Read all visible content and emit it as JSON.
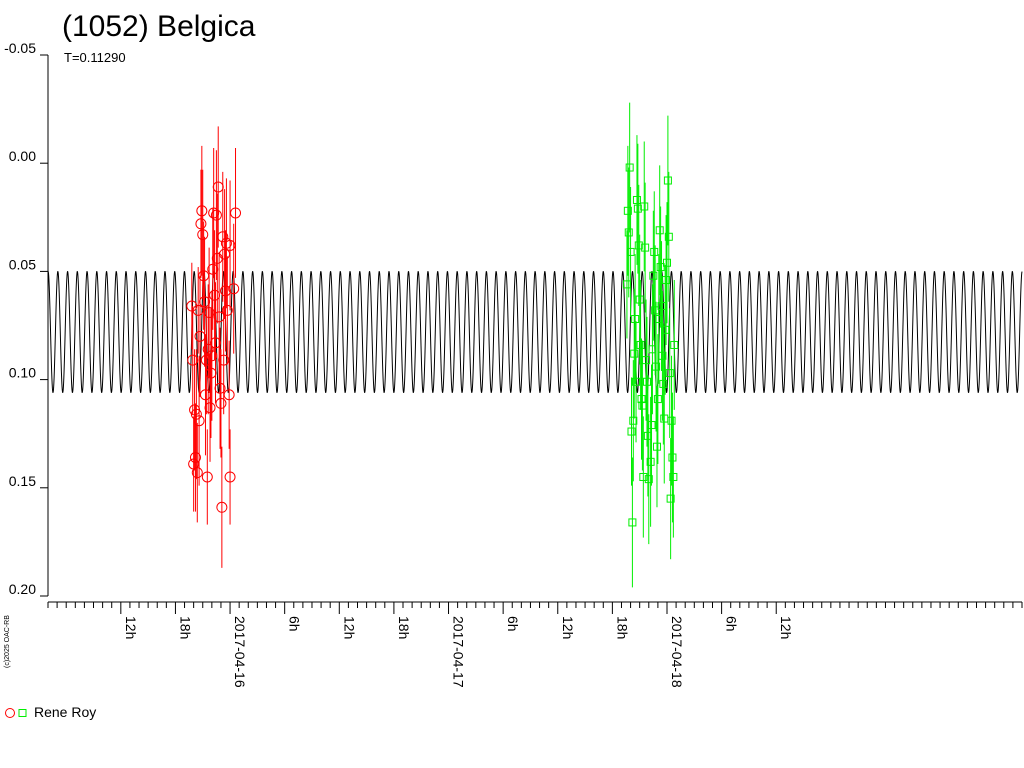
{
  "chart_data": {
    "type": "scatter",
    "title": "(1052) Belgica",
    "subtitle": "T=0.11290",
    "credit": "(c)2025 OAC-RB",
    "ylim": [
      -0.05,
      0.2
    ],
    "y_inverted": true,
    "yticks": [
      "-0.05",
      "0.00",
      "0.05",
      "0.10",
      "0.15",
      "0.20"
    ],
    "ytick_values": [
      -0.05,
      0.0,
      0.05,
      0.1,
      0.15,
      0.2
    ],
    "xlim_hours": [
      4,
      111
    ],
    "xticks": [
      {
        "label": "12h",
        "hour": 12
      },
      {
        "label": "18h",
        "hour": 18
      },
      {
        "label": "2017-04-16",
        "hour": 24
      },
      {
        "label": "6h",
        "hour": 30
      },
      {
        "label": "12h",
        "hour": 36
      },
      {
        "label": "18h",
        "hour": 42
      },
      {
        "label": "2017-04-17",
        "hour": 48
      },
      {
        "label": "6h",
        "hour": 54
      },
      {
        "label": "12h",
        "hour": 60
      },
      {
        "label": "18h",
        "hour": 66
      },
      {
        "label": "2017-04-18",
        "hour": 72
      },
      {
        "label": "6h",
        "hour": 78
      },
      {
        "label": "12h",
        "hour": 84
      }
    ],
    "model_curve": {
      "center": 0.078,
      "amplitude": 0.028,
      "period_hours": 1.07,
      "color": "#000000"
    },
    "legend": {
      "label": "Rene Roy",
      "placement": "bottom-left"
    },
    "series": [
      {
        "marker": "circle",
        "color": "#ff0000",
        "points": [
          [
            19.8,
            0.066,
            0.02
          ],
          [
            19.9,
            0.091,
            0.025
          ],
          [
            20.0,
            0.139,
            0.022
          ],
          [
            20.1,
            0.114,
            0.028
          ],
          [
            20.2,
            0.136,
            0.025
          ],
          [
            20.3,
            0.116,
            0.03
          ],
          [
            20.4,
            0.143,
            0.023
          ],
          [
            20.5,
            0.068,
            0.02
          ],
          [
            20.6,
            0.119,
            0.03
          ],
          [
            20.7,
            0.08,
            0.028
          ],
          [
            20.8,
            0.028,
            0.025
          ],
          [
            20.9,
            0.022,
            0.03
          ],
          [
            21.0,
            0.033,
            0.03
          ],
          [
            21.1,
            0.052,
            0.025
          ],
          [
            21.2,
            0.064,
            0.03
          ],
          [
            21.3,
            0.107,
            0.028
          ],
          [
            21.4,
            0.091,
            0.025
          ],
          [
            21.5,
            0.145,
            0.022
          ],
          [
            21.6,
            0.086,
            0.03
          ],
          [
            21.7,
            0.069,
            0.03
          ],
          [
            21.8,
            0.113,
            0.025
          ],
          [
            21.9,
            0.097,
            0.03
          ],
          [
            22.0,
            0.089,
            0.03
          ],
          [
            22.1,
            0.049,
            0.028
          ],
          [
            22.2,
            0.023,
            0.03
          ],
          [
            22.3,
            0.061,
            0.03
          ],
          [
            22.4,
            0.083,
            0.028
          ],
          [
            22.5,
            0.024,
            0.03
          ],
          [
            22.6,
            0.044,
            0.03
          ],
          [
            22.7,
            0.011,
            0.028
          ],
          [
            22.8,
            0.071,
            0.03
          ],
          [
            22.9,
            0.104,
            0.028
          ],
          [
            23.0,
            0.111,
            0.025
          ],
          [
            23.1,
            0.159,
            0.028
          ],
          [
            23.2,
            0.034,
            0.03
          ],
          [
            23.3,
            0.091,
            0.025
          ],
          [
            23.4,
            0.042,
            0.03
          ],
          [
            23.5,
            0.059,
            0.028
          ],
          [
            23.6,
            0.037,
            0.03
          ],
          [
            23.7,
            0.068,
            0.025
          ],
          [
            23.9,
            0.107,
            0.025
          ],
          [
            24.0,
            0.038,
            0.03
          ],
          [
            24.0,
            0.145,
            0.022
          ],
          [
            24.4,
            0.058,
            0.03
          ],
          [
            24.6,
            0.023,
            0.03
          ]
        ]
      },
      {
        "marker": "square",
        "color": "#00ee00",
        "points": [
          [
            67.6,
            0.056,
            0.025
          ],
          [
            67.7,
            0.022,
            0.03
          ],
          [
            67.8,
            0.032,
            0.03
          ],
          [
            67.9,
            0.002,
            0.03
          ],
          [
            68.0,
            0.041,
            0.03
          ],
          [
            68.1,
            0.124,
            0.025
          ],
          [
            68.2,
            0.166,
            0.03
          ],
          [
            68.3,
            0.119,
            0.028
          ],
          [
            68.4,
            0.088,
            0.03
          ],
          [
            68.5,
            0.072,
            0.03
          ],
          [
            68.6,
            0.101,
            0.028
          ],
          [
            68.7,
            0.017,
            0.03
          ],
          [
            68.8,
            0.021,
            0.03
          ],
          [
            68.9,
            0.038,
            0.028
          ],
          [
            69.0,
            0.063,
            0.03
          ],
          [
            69.1,
            0.084,
            0.03
          ],
          [
            69.2,
            0.109,
            0.028
          ],
          [
            69.3,
            0.112,
            0.03
          ],
          [
            69.4,
            0.145,
            0.028
          ],
          [
            69.5,
            0.02,
            0.03
          ],
          [
            69.6,
            0.039,
            0.03
          ],
          [
            69.7,
            0.091,
            0.028
          ],
          [
            69.8,
            0.101,
            0.03
          ],
          [
            69.9,
            0.126,
            0.028
          ],
          [
            70.0,
            0.146,
            0.03
          ],
          [
            70.2,
            0.138,
            0.03
          ],
          [
            70.3,
            0.121,
            0.028
          ],
          [
            70.4,
            0.086,
            0.03
          ],
          [
            70.5,
            0.052,
            0.03
          ],
          [
            70.6,
            0.041,
            0.028
          ],
          [
            70.7,
            0.068,
            0.03
          ],
          [
            70.8,
            0.094,
            0.03
          ],
          [
            70.9,
            0.131,
            0.028
          ],
          [
            71.0,
            0.109,
            0.03
          ],
          [
            71.1,
            0.072,
            0.03
          ],
          [
            71.2,
            0.031,
            0.03
          ],
          [
            71.3,
            0.048,
            0.028
          ],
          [
            71.4,
            0.066,
            0.03
          ],
          [
            71.5,
            0.089,
            0.03
          ],
          [
            71.6,
            0.102,
            0.028
          ],
          [
            71.7,
            0.118,
            0.03
          ],
          [
            71.8,
            0.077,
            0.03
          ],
          [
            71.9,
            0.054,
            0.03
          ],
          [
            72.0,
            0.046,
            0.028
          ],
          [
            72.1,
            0.008,
            0.03
          ],
          [
            72.2,
            0.034,
            0.03
          ],
          [
            72.3,
            0.097,
            0.03
          ],
          [
            72.4,
            0.155,
            0.028
          ],
          [
            72.5,
            0.119,
            0.03
          ],
          [
            72.6,
            0.136,
            0.03
          ],
          [
            72.7,
            0.145,
            0.028
          ],
          [
            72.8,
            0.084,
            0.03
          ]
        ]
      }
    ]
  }
}
